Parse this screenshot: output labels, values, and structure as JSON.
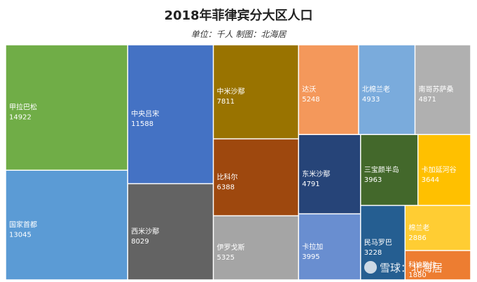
{
  "chart_data": {
    "type": "treemap",
    "title": "2018年菲律宾分大区人口",
    "subtitle": "单位：千人 制图：北海居",
    "items": [
      {
        "name": "甲拉巴松",
        "value": 14922,
        "color": "#70ad47"
      },
      {
        "name": "国家首都",
        "value": 13045,
        "color": "#5b9bd5"
      },
      {
        "name": "中央吕宋",
        "value": 11588,
        "color": "#4472c4"
      },
      {
        "name": "西米沙鄢",
        "value": 8029,
        "color": "#636363"
      },
      {
        "name": "中米沙鄢",
        "value": 7811,
        "color": "#997300"
      },
      {
        "name": "比科尔",
        "value": 6388,
        "color": "#9e480e"
      },
      {
        "name": "伊罗戈斯",
        "value": 5325,
        "color": "#a5a5a5"
      },
      {
        "name": "达沃",
        "value": 5248,
        "color": "#f4985b"
      },
      {
        "name": "北棉兰老",
        "value": 4933,
        "color": "#7aabdc"
      },
      {
        "name": "南哥苏萨桑",
        "value": 4871,
        "color": "#b0b0b0"
      },
      {
        "name": "东米沙鄢",
        "value": 4791,
        "color": "#264478"
      },
      {
        "name": "卡拉加",
        "value": 3995,
        "color": "#698ed0"
      },
      {
        "name": "三宝颜半岛",
        "value": 3963,
        "color": "#43682b"
      },
      {
        "name": "卡加延河谷",
        "value": 3644,
        "color": "#ffc000"
      },
      {
        "name": "民马罗巴",
        "value": 3228,
        "color": "#255e91"
      },
      {
        "name": "棉兰老",
        "value": 2886,
        "color": "#ffcd33"
      },
      {
        "name": "科迪勒拉",
        "value": 1880,
        "color": "#ed7d31"
      }
    ]
  },
  "watermark": "雪球：北海居"
}
